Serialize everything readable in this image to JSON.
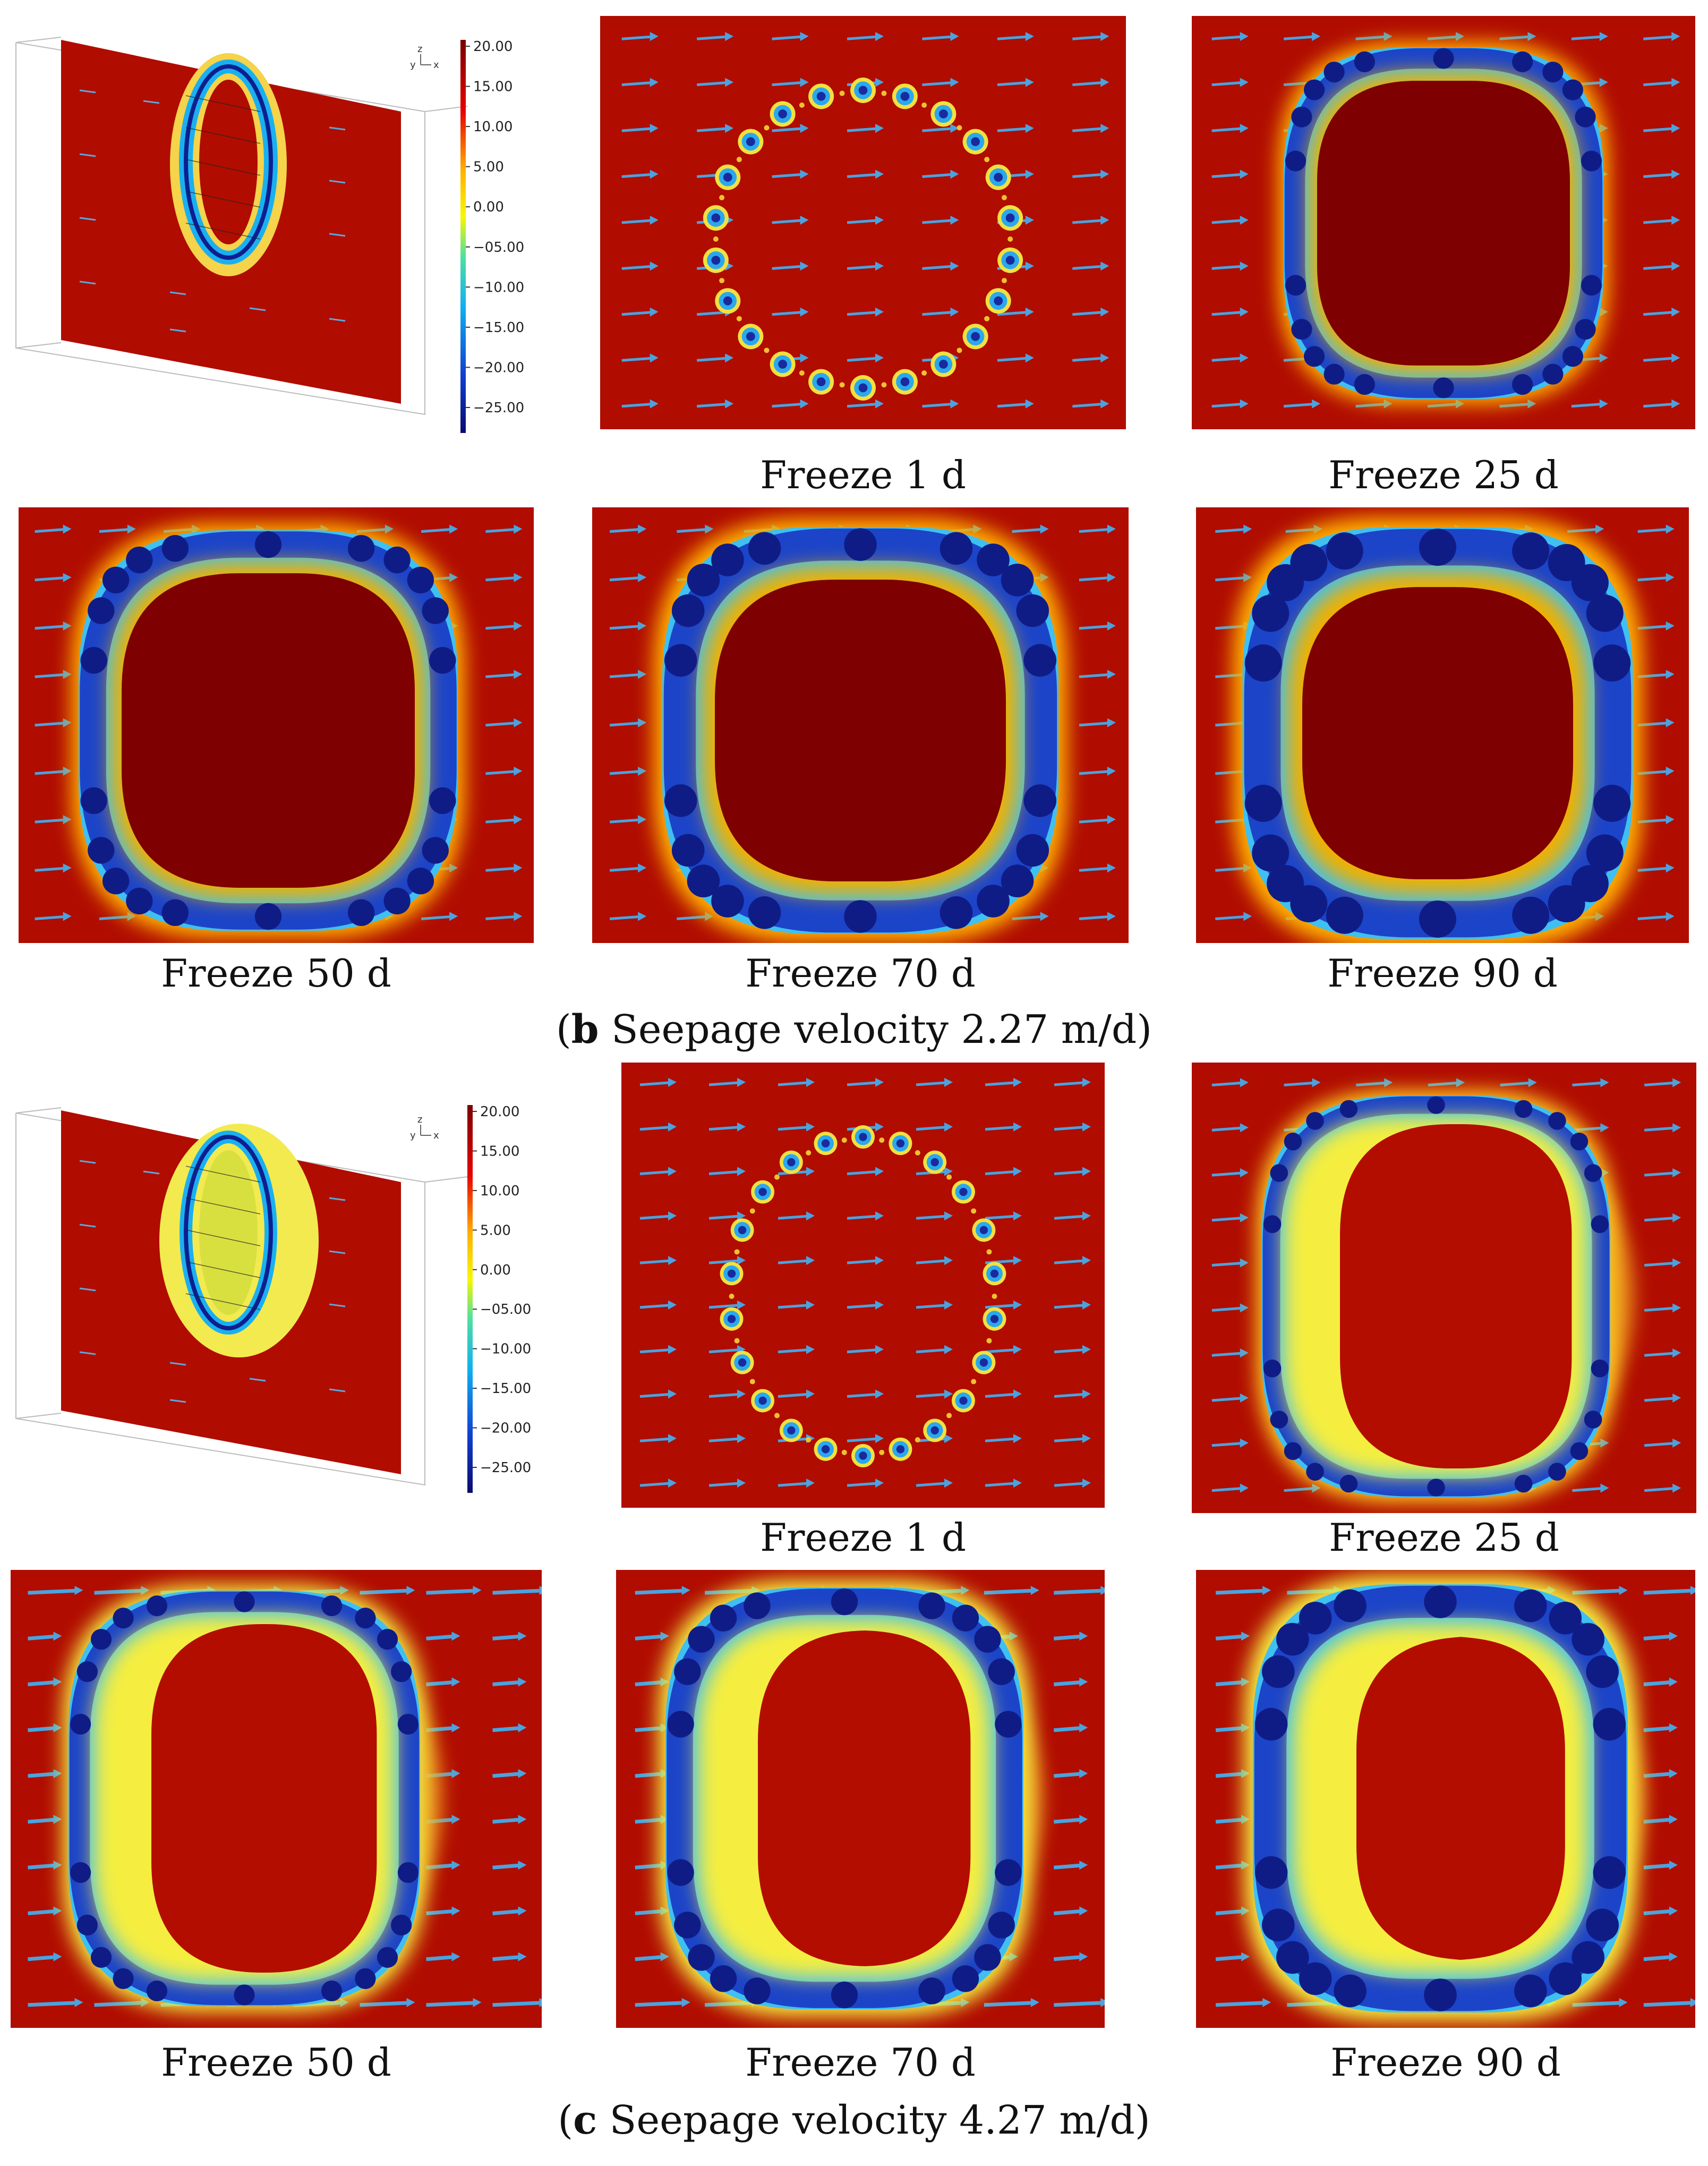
{
  "figure": {
    "colorbar_labels": [
      "20.00",
      "15.00",
      "10.00",
      "5.00",
      "0.00",
      "−05.00",
      "−10.00",
      "−15.00",
      "−20.00",
      "−25.00"
    ],
    "colors": {
      "warm": "#b40d00",
      "deep": "#7a0000",
      "cold": "#0b1d8c",
      "ring_mid": "#27a4f2",
      "freeze_core": "#1e2d9f",
      "arrow": "#4aa3df"
    },
    "rows": [
      {
        "id": "b",
        "captions": [
          "Freeze 1 d",
          "Freeze 25 d",
          "Freeze 50 d",
          "Freeze 70 d",
          "Freeze 90 d"
        ],
        "label_letter": "b",
        "label_text": " Seepage velocity 2.27 m/d"
      },
      {
        "id": "c",
        "captions": [
          "Freeze 1 d",
          "Freeze 25 d",
          "Freeze 50 d",
          "Freeze 70 d",
          "Freeze 90 d"
        ],
        "label_letter": "c",
        "label_text": " Seepage velocity 4.27 m/d"
      }
    ],
    "axes_triad": {
      "z": "z",
      "y": "y",
      "x": "x"
    }
  }
}
